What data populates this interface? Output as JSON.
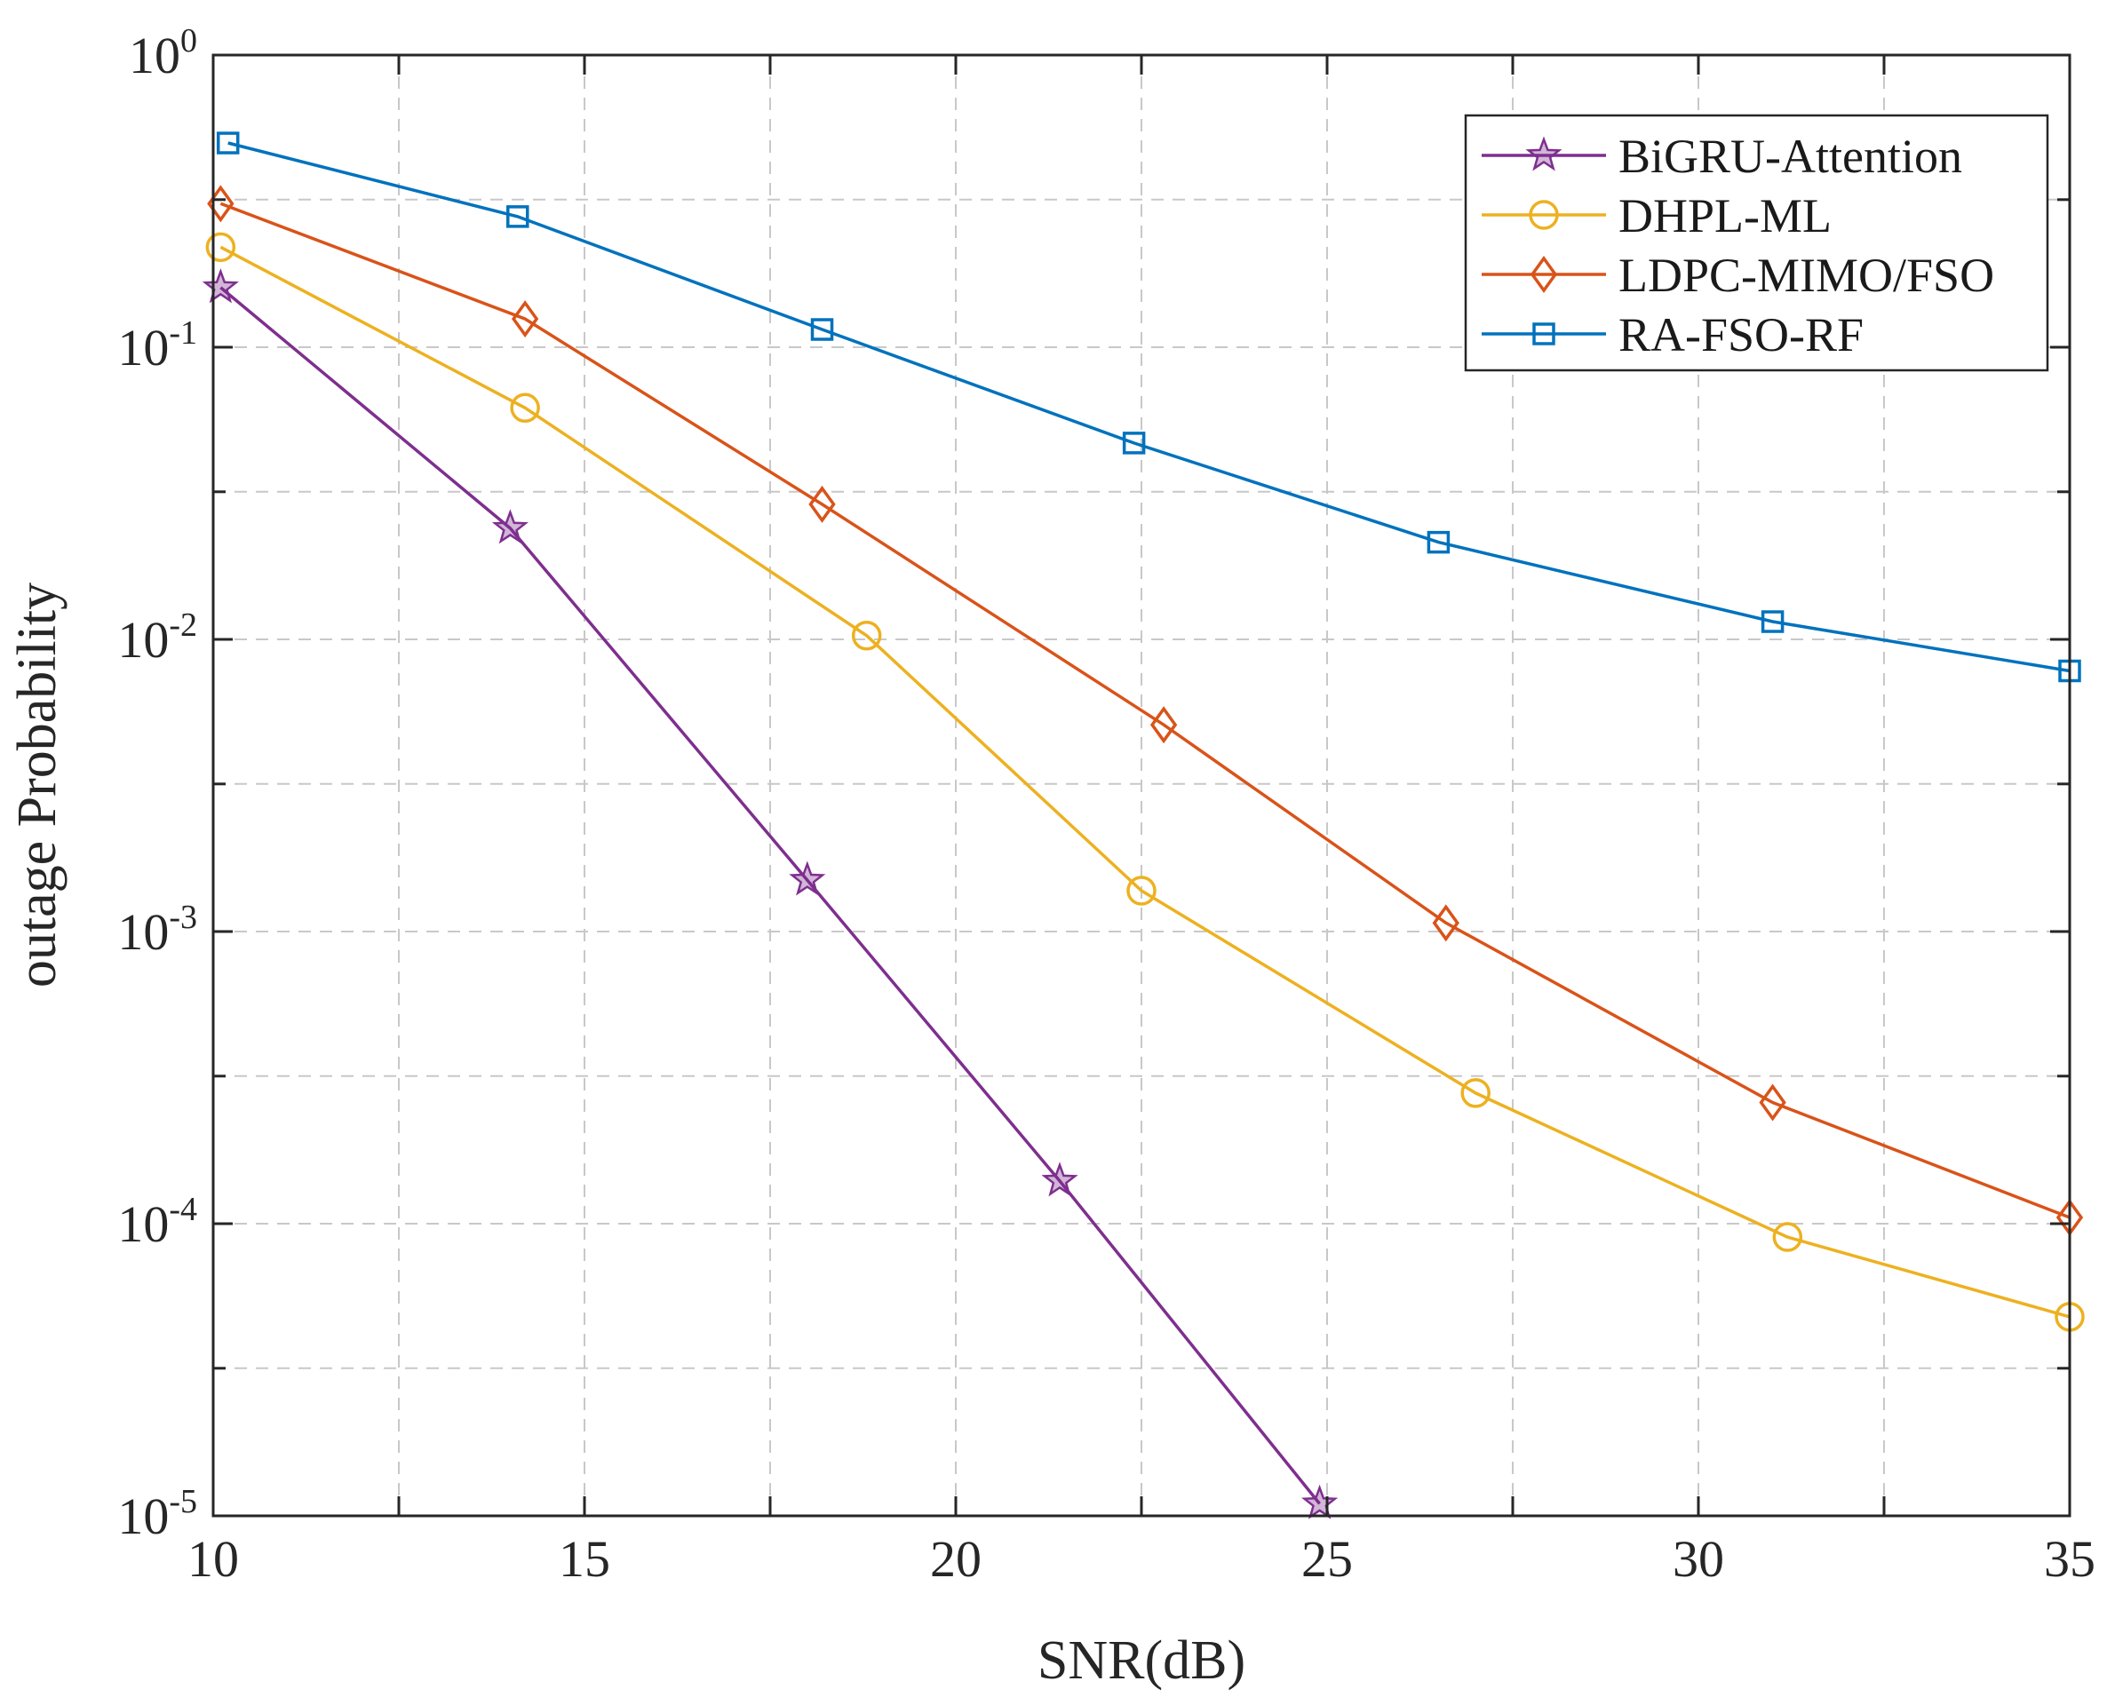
{
  "chart_data": {
    "type": "line",
    "title": "",
    "xlabel": "SNR(dB)",
    "ylabel": "outage Probability",
    "xlim": [
      10,
      35
    ],
    "ylim": [
      1e-05,
      1
    ],
    "yscale": "log",
    "grid": true,
    "legend_position": "top-right",
    "x_ticks": [
      10,
      15,
      20,
      25,
      30,
      35
    ],
    "x_tick_labels": [
      "10",
      "15",
      "20",
      "25",
      "30",
      "35"
    ],
    "y_ticks": [
      {
        "base": "10",
        "exp": "0"
      },
      {
        "base": "10",
        "exp": "-1"
      },
      {
        "base": "10",
        "exp": "-2"
      },
      {
        "base": "10",
        "exp": "-3"
      },
      {
        "base": "10",
        "exp": "-4"
      },
      {
        "base": "10",
        "exp": "-5"
      }
    ],
    "series": [
      {
        "name": "BiGRU-Attention",
        "color": "#7E2F8E",
        "marker": "star",
        "x": [
          10.1,
          14.0,
          18.0,
          21.4,
          24.9
        ],
        "y": [
          0.16,
          0.024,
          0.0015,
          0.00014,
          1.1e-05
        ]
      },
      {
        "name": "DHPL-ML",
        "color": "#EDB120",
        "marker": "circle",
        "x": [
          10.1,
          14.2,
          18.8,
          22.5,
          27.0,
          31.2,
          35.0
        ],
        "y": [
          0.22,
          0.062,
          0.0103,
          0.00138,
          0.00028,
          9e-05,
          4.8e-05
        ]
      },
      {
        "name": "LDPC-MIMO/FSO",
        "color": "#D95319",
        "marker": "diamond",
        "x": [
          10.1,
          14.2,
          18.2,
          22.8,
          26.6,
          31.0,
          35.0
        ],
        "y": [
          0.31,
          0.125,
          0.029,
          0.0051,
          0.00107,
          0.00026,
          0.000105
        ]
      },
      {
        "name": "RA-FSO-RF",
        "color": "#0072BD",
        "marker": "square",
        "x": [
          10.2,
          14.1,
          18.2,
          22.4,
          26.5,
          31.0,
          35.0
        ],
        "y": [
          0.5,
          0.28,
          0.115,
          0.047,
          0.0215,
          0.0115,
          0.0078
        ]
      }
    ]
  }
}
